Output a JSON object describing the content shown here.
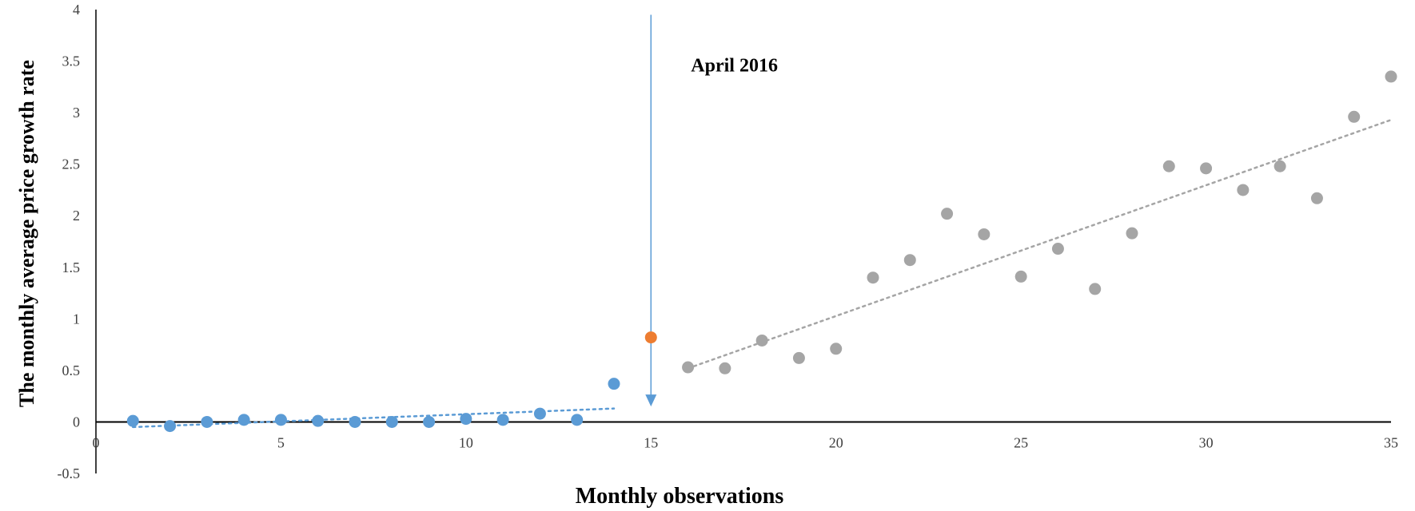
{
  "chart_data": {
    "type": "scatter",
    "title": "",
    "xlabel": "Monthly observations",
    "ylabel": "The monthly average price growth rate",
    "xlim": [
      0,
      35
    ],
    "ylim": [
      -0.5,
      4
    ],
    "xticks": [
      "0",
      "5",
      "10",
      "15",
      "20",
      "25",
      "30",
      "35"
    ],
    "yticks": [
      "-0.5",
      "0",
      "0.5",
      "1",
      "1.5",
      "2",
      "2.5",
      "3",
      "3.5",
      "4"
    ],
    "grid": false,
    "legend": "none",
    "annotation": {
      "text": "April 2016",
      "x": 15,
      "y_top": 3.95,
      "y_bottom": 0.15
    },
    "series": [
      {
        "color": "#5b9bd5",
        "points": [
          {
            "x": 1,
            "y": 0.01
          },
          {
            "x": 2,
            "y": -0.04
          },
          {
            "x": 3,
            "y": 0.0
          },
          {
            "x": 4,
            "y": 0.02
          },
          {
            "x": 5,
            "y": 0.02
          },
          {
            "x": 6,
            "y": 0.01
          },
          {
            "x": 7,
            "y": 0.0
          },
          {
            "x": 8,
            "y": 0.0
          },
          {
            "x": 9,
            "y": 0.0
          },
          {
            "x": 10,
            "y": 0.03
          },
          {
            "x": 11,
            "y": 0.02
          },
          {
            "x": 12,
            "y": 0.08
          },
          {
            "x": 13,
            "y": 0.02
          },
          {
            "x": 14,
            "y": 0.37
          }
        ],
        "trendline": {
          "x": [
            1,
            14
          ],
          "y": [
            -0.05,
            0.13
          ]
        }
      },
      {
        "color": "#ed7d31",
        "points": [
          {
            "x": 15,
            "y": 0.82
          }
        ]
      },
      {
        "color": "#a5a5a5",
        "points": [
          {
            "x": 16,
            "y": 0.53
          },
          {
            "x": 17,
            "y": 0.52
          },
          {
            "x": 18,
            "y": 0.79
          },
          {
            "x": 19,
            "y": 0.62
          },
          {
            "x": 20,
            "y": 0.71
          },
          {
            "x": 21,
            "y": 1.4
          },
          {
            "x": 22,
            "y": 1.57
          },
          {
            "x": 23,
            "y": 2.02
          },
          {
            "x": 24,
            "y": 1.82
          },
          {
            "x": 25,
            "y": 1.41
          },
          {
            "x": 26,
            "y": 1.68
          },
          {
            "x": 27,
            "y": 1.29
          },
          {
            "x": 28,
            "y": 1.83
          },
          {
            "x": 29,
            "y": 2.48
          },
          {
            "x": 30,
            "y": 2.46
          },
          {
            "x": 31,
            "y": 2.25
          },
          {
            "x": 32,
            "y": 2.48
          },
          {
            "x": 33,
            "y": 2.17
          },
          {
            "x": 34,
            "y": 2.96
          },
          {
            "x": 35,
            "y": 3.35
          }
        ],
        "trendline": {
          "x": [
            16,
            35
          ],
          "y": [
            0.52,
            2.93
          ]
        }
      }
    ],
    "colors": {
      "annotation_arrow": "#5b9bd5",
      "axis": "#000000"
    }
  }
}
